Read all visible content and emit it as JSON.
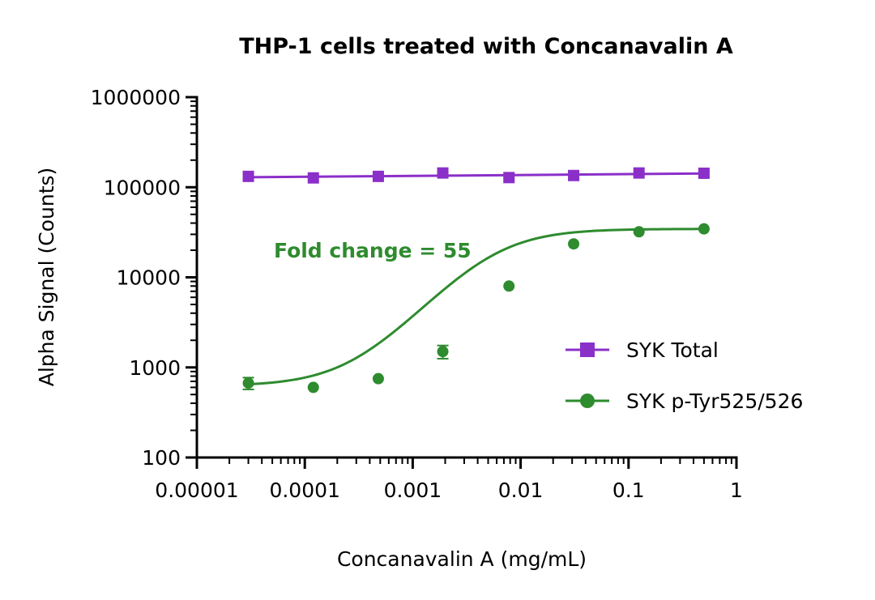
{
  "chart_data": {
    "type": "scatter",
    "title": "THP-1 cells treated with Concanavalin A",
    "xlabel": "Concanavalin A  (mg/mL)",
    "ylabel": "Alpha Signal (Counts)",
    "xscale": "log",
    "yscale": "log",
    "xlim": [
      1e-05,
      1
    ],
    "ylim": [
      100,
      1000000
    ],
    "x_ticks": [
      1e-05,
      0.0001,
      0.001,
      0.01,
      0.1,
      1
    ],
    "x_tick_labels": [
      "0.00001",
      "0.0001",
      "0.001",
      "0.01",
      "0.1",
      "1"
    ],
    "y_ticks": [
      100,
      1000,
      10000,
      100000,
      1000000
    ],
    "y_tick_labels": [
      "100",
      "1000",
      "10000",
      "100000",
      "1000000"
    ],
    "grid": false,
    "legend_position": "right",
    "annotation": {
      "text": "Fold change = 55",
      "color": "#2e8b2e"
    },
    "series": [
      {
        "name": "SYK Total",
        "color": "#8b2fc9",
        "marker": "square",
        "fit": "line",
        "x": [
          3e-05,
          0.00012,
          0.00048,
          0.0019,
          0.0078,
          0.031,
          0.125,
          0.5
        ],
        "y": [
          132000,
          127000,
          132000,
          144000,
          128000,
          135000,
          144000,
          143000
        ]
      },
      {
        "name": "SYK p-Tyr525/526",
        "color": "#2e8b2e",
        "marker": "circle",
        "fit": "sigmoid",
        "x": [
          3e-05,
          0.00012,
          0.00048,
          0.0019,
          0.0078,
          0.031,
          0.125,
          0.5
        ],
        "y": [
          670,
          600,
          750,
          1500,
          8000,
          23500,
          32000,
          34500
        ],
        "error": [
          100,
          0,
          0,
          250,
          0,
          0,
          0,
          0
        ]
      }
    ]
  }
}
